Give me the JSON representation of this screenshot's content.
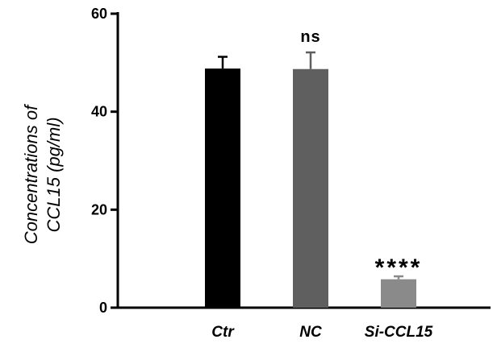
{
  "chart_data": {
    "type": "bar",
    "categories": [
      "Ctr",
      "NC",
      "Si-CCL15"
    ],
    "values": [
      48.8,
      48.7,
      5.8
    ],
    "errors": [
      2.4,
      3.4,
      0.6
    ],
    "annotations": [
      "",
      "ns",
      "****"
    ],
    "colors": [
      "#000000",
      "#5f5f5f",
      "#8a8a8a"
    ],
    "ylabel_lines": [
      "Concentrations of",
      "CCL15 (pg/ml)"
    ],
    "xlabel": "",
    "title": "",
    "ylim": [
      0,
      60
    ],
    "yticks": [
      0,
      20,
      40,
      60
    ],
    "grid": false,
    "legend": "none"
  }
}
